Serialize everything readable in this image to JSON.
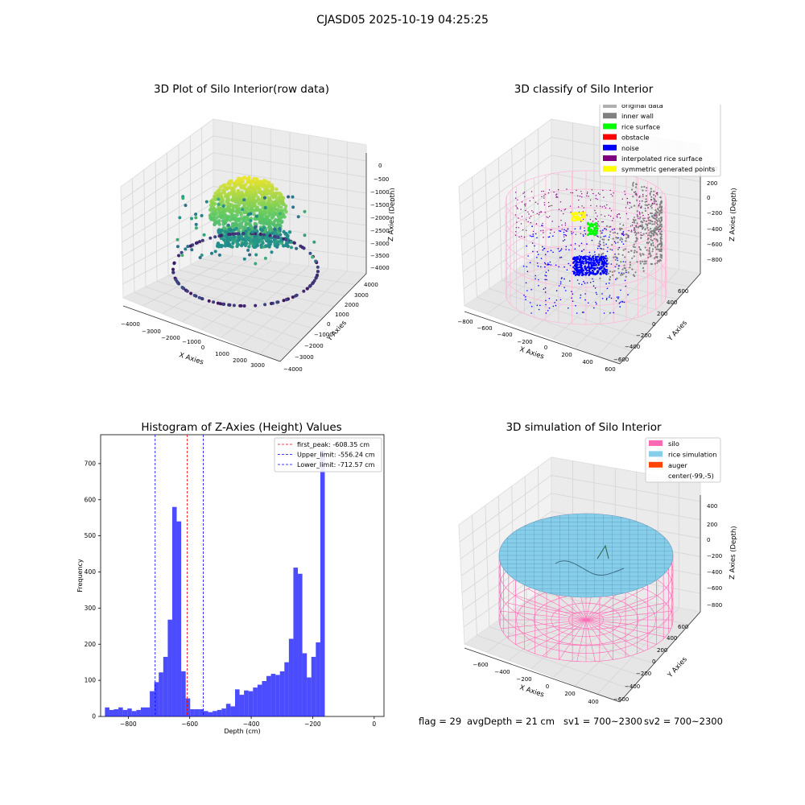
{
  "suptitle": "CJASD05 2025-10-19 04:25:25",
  "panels": {
    "raw": {
      "title": "3D Plot of Silo Interior(row data)",
      "xlabel": "X Axies",
      "ylabel": "Y Axies",
      "zlabel": "Z Axies (Depth)",
      "xticks": [
        "−4000",
        "−3000",
        "−2000",
        "−1000",
        "0",
        "1000",
        "2000",
        "3000"
      ],
      "yticks": [
        "4000",
        "3000",
        "2000",
        "1000",
        "0",
        "−1000",
        "−2000",
        "−3000",
        "−4000"
      ],
      "zticks": [
        "0",
        "−500",
        "−1000",
        "−1500",
        "−2000",
        "−2500",
        "−3000",
        "−3500",
        "−4000"
      ]
    },
    "classify": {
      "title": "3D classify of Silo Interior",
      "xlabel": "X Axies",
      "ylabel": "Y Axies",
      "zlabel": "Z Axies (Depth)",
      "xticks": [
        "−800",
        "−600",
        "−400",
        "−200",
        "0",
        "200",
        "400",
        "600"
      ],
      "yticks": [
        "600",
        "400",
        "200",
        "0",
        "−200",
        "−400",
        "−600"
      ],
      "zticks": [
        "400",
        "200",
        "0",
        "−200",
        "−400",
        "−600",
        "−800"
      ],
      "legend": [
        {
          "label": "original data",
          "color": "#b0b0b0"
        },
        {
          "label": "inner wall",
          "color": "#808080"
        },
        {
          "label": "rice surface",
          "color": "#00ff00"
        },
        {
          "label": "obstacle",
          "color": "#ff0000"
        },
        {
          "label": "noise",
          "color": "#0000ff"
        },
        {
          "label": "interpolated rice surface",
          "color": "#800080"
        },
        {
          "label": "symmetric generated points",
          "color": "#ffff00"
        }
      ]
    },
    "simulation": {
      "title": "3D simulation of Silo Interior",
      "xlabel": "X Axies",
      "ylabel": "Y Axies",
      "zlabel": "Z Axies (Depth)",
      "xticks": [
        "−600",
        "−400",
        "−200",
        "0",
        "200",
        "400"
      ],
      "yticks": [
        "600",
        "400",
        "200",
        "0",
        "−200",
        "−400",
        "−600"
      ],
      "zticks": [
        "400",
        "200",
        "0",
        "−200",
        "−400",
        "−600",
        "−800"
      ],
      "legend": [
        {
          "label": "silo",
          "color": "#ff69b4"
        },
        {
          "label": "rice simulation",
          "color": "#87ceeb"
        },
        {
          "label": "auger",
          "color": "#ff4500"
        },
        {
          "label": "center(-99,-5)",
          "color": ""
        }
      ]
    }
  },
  "footer": {
    "flag": "flag = 29",
    "avg_depth": "avgDepth = 21 cm",
    "sv1": "sv1 = 700~2300",
    "sv2": "sv2 = 700~2300"
  },
  "chart_data": [
    {
      "type": "histogram",
      "title": "Histogram of Z-Axies (Height) Values",
      "xlabel": "Depth (cm)",
      "ylabel": "Frequency",
      "xlim": [
        -890,
        32
      ],
      "ylim": [
        0,
        780
      ],
      "xticks": [
        -800,
        -600,
        -400,
        -200,
        0
      ],
      "xtick_labels": [
        "−800",
        "−600",
        "−400",
        "−200",
        "0"
      ],
      "yticks": [
        0,
        100,
        200,
        300,
        400,
        500,
        600,
        700
      ],
      "bin_width": 14.6,
      "bin_start": -876,
      "bar_color": "#0000ff",
      "values": [
        25,
        18,
        20,
        25,
        18,
        22,
        15,
        18,
        25,
        25,
        70,
        95,
        122,
        165,
        268,
        580,
        540,
        125,
        50,
        20,
        20,
        20,
        15,
        12,
        15,
        18,
        22,
        35,
        28,
        75,
        60,
        72,
        70,
        80,
        88,
        98,
        112,
        118,
        115,
        125,
        150,
        215,
        412,
        395,
        175,
        108,
        165,
        205,
        737
      ],
      "lines": [
        {
          "label": "first_peak: -608.35 cm",
          "x": -608.35,
          "color": "#ff0000"
        },
        {
          "label": "Upper_limit: -556.24 cm",
          "x": -556.24,
          "color": "#0000ff"
        },
        {
          "label": "Lower_limit: -712.57 cm",
          "x": -712.57,
          "color": "#0000ff"
        }
      ]
    }
  ]
}
